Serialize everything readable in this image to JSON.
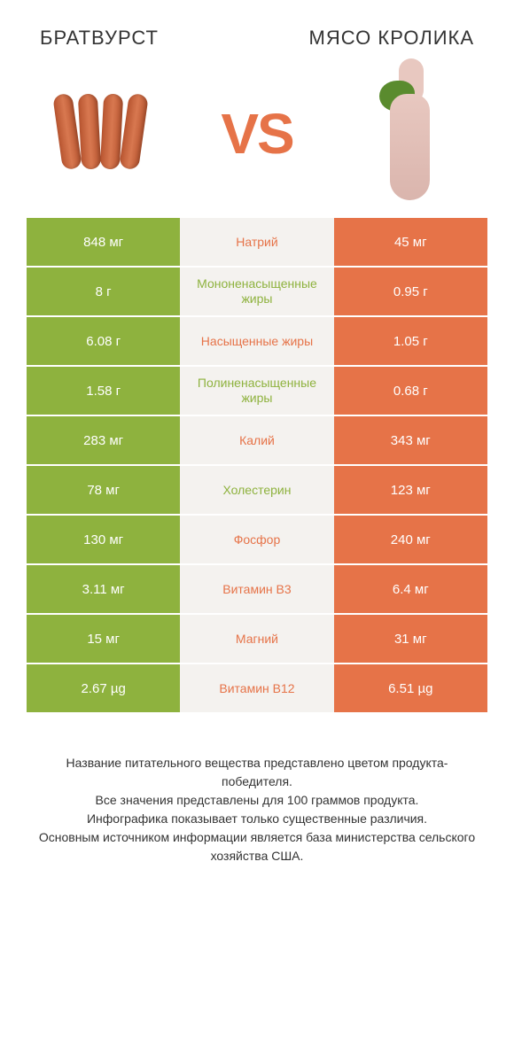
{
  "colors": {
    "green": "#8eb23e",
    "orange": "#e67348",
    "mid_bg": "#f4f2ef",
    "text": "#333333",
    "white": "#ffffff"
  },
  "header": {
    "left_title": "БРАТВУРСТ",
    "right_title": "МЯСО КРОЛИКА",
    "vs": "VS"
  },
  "rows": [
    {
      "left": "848 мг",
      "label": "Натрий",
      "right": "45 мг",
      "winner": "right"
    },
    {
      "left": "8 г",
      "label": "Мононенасыщенные жиры",
      "right": "0.95 г",
      "winner": "left"
    },
    {
      "left": "6.08 г",
      "label": "Насыщенные жиры",
      "right": "1.05 г",
      "winner": "right"
    },
    {
      "left": "1.58 г",
      "label": "Полиненасыщенные жиры",
      "right": "0.68 г",
      "winner": "left"
    },
    {
      "left": "283 мг",
      "label": "Калий",
      "right": "343 мг",
      "winner": "right"
    },
    {
      "left": "78 мг",
      "label": "Холестерин",
      "right": "123 мг",
      "winner": "left"
    },
    {
      "left": "130 мг",
      "label": "Фосфор",
      "right": "240 мг",
      "winner": "right"
    },
    {
      "left": "3.11 мг",
      "label": "Витамин B3",
      "right": "6.4 мг",
      "winner": "right"
    },
    {
      "left": "15 мг",
      "label": "Магний",
      "right": "31 мг",
      "winner": "right"
    },
    {
      "left": "2.67 µg",
      "label": "Витамин B12",
      "right": "6.51 µg",
      "winner": "right"
    }
  ],
  "footer": {
    "line1": "Название питательного вещества представлено цветом продукта-победителя.",
    "line2": "Все значения представлены для 100 граммов продукта.",
    "line3": "Инфографика показывает только существенные различия.",
    "line4": "Основным источником информации является база министерства сельского хозяйства США."
  },
  "typography": {
    "title_fontsize": 22,
    "vs_fontsize": 64,
    "cell_fontsize": 15,
    "label_fontsize": 14,
    "footer_fontsize": 14
  }
}
